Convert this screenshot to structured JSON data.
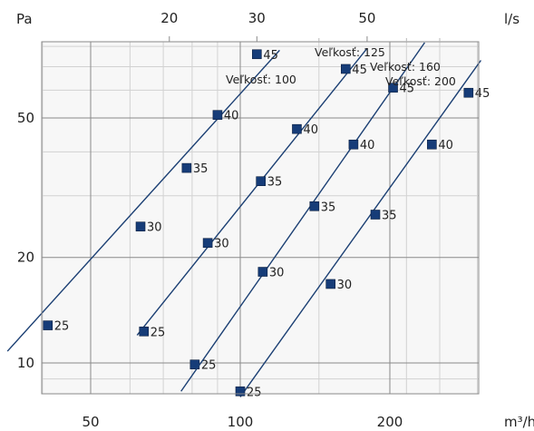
{
  "chart_data": {
    "type": "line",
    "x_unit_bottom": "m³/h",
    "x_unit_top": "l/s",
    "y_unit": "Pa",
    "x_scale": "log",
    "y_scale": "log",
    "xlim": [
      33,
      330
    ],
    "ylim": [
      8,
      100
    ],
    "bottom_ticks": [
      "50",
      "100",
      "200"
    ],
    "top_ticks": [
      "20",
      "30",
      "50"
    ],
    "left_ticks": [
      "10",
      "20",
      "50"
    ],
    "grid": true,
    "series": [
      {
        "name": "Veľkosť: 100",
        "line": [
          [
            34,
            10.8
          ],
          [
            120,
            78
          ]
        ],
        "points": [
          {
            "x": 41,
            "y": 12.8,
            "label": "25"
          },
          {
            "x": 63,
            "y": 24.5,
            "label": "30"
          },
          {
            "x": 78,
            "y": 36.0,
            "label": "35"
          },
          {
            "x": 90,
            "y": 51.0,
            "label": "40"
          },
          {
            "x": 108,
            "y": 76.0,
            "label": "45"
          }
        ]
      },
      {
        "name": "Veľkosť: 125",
        "line": [
          [
            62,
            12.0
          ],
          [
            180,
            79
          ]
        ],
        "points": [
          {
            "x": 64,
            "y": 12.3,
            "label": "25"
          },
          {
            "x": 81,
            "y": 9.9,
            "label": "25"
          },
          {
            "x": 86,
            "y": 22.0,
            "label": "30"
          },
          {
            "x": 110,
            "y": 33.0,
            "label": "35"
          },
          {
            "x": 130,
            "y": 46.5,
            "label": "40"
          },
          {
            "x": 163,
            "y": 69.0,
            "label": "45"
          }
        ]
      },
      {
        "name": "Veľkosť: 160",
        "line": [
          [
            76,
            8.3
          ],
          [
            235,
            82
          ]
        ],
        "points": [
          {
            "x": 111,
            "y": 18.2,
            "label": "30"
          },
          {
            "x": 141,
            "y": 28.0,
            "label": "35"
          },
          {
            "x": 169,
            "y": 42.0,
            "label": "40"
          },
          {
            "x": 203,
            "y": 61.0,
            "label": "45"
          }
        ]
      },
      {
        "name": "Veľkosť: 200",
        "line": [
          [
            100,
            8.0
          ],
          [
            305,
            73
          ]
        ],
        "points": [
          {
            "x": 100,
            "y": 8.3,
            "label": "25"
          },
          {
            "x": 152,
            "y": 16.8,
            "label": "30"
          },
          {
            "x": 187,
            "y": 26.5,
            "label": "35"
          },
          {
            "x": 243,
            "y": 42.0,
            "label": "40"
          },
          {
            "x": 288,
            "y": 59.0,
            "label": "45"
          }
        ]
      }
    ]
  }
}
